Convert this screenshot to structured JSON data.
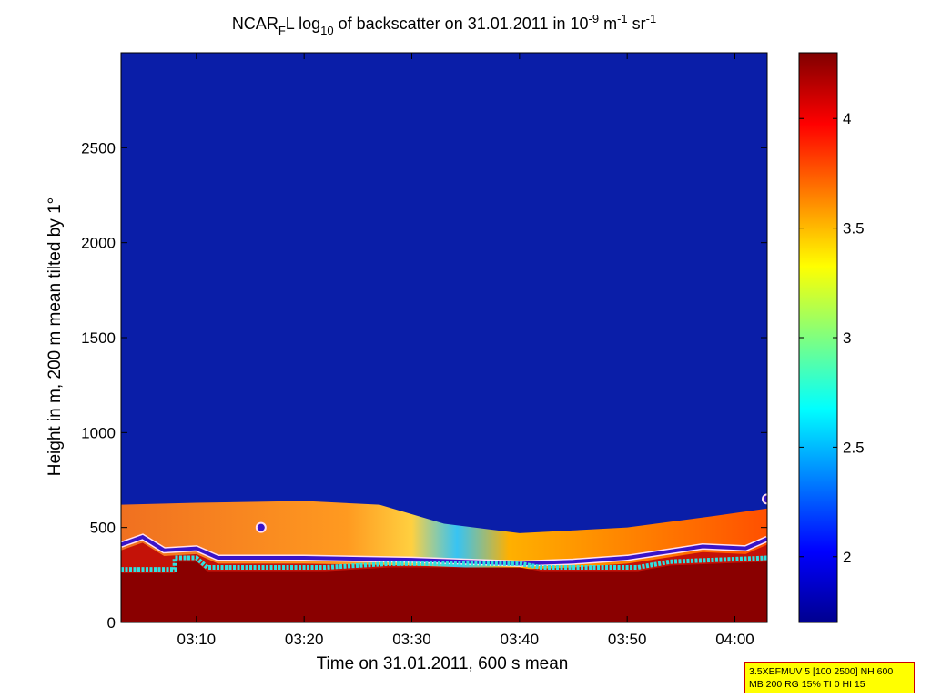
{
  "chart_data": {
    "type": "heatmap",
    "title": {
      "p1": "NCAR",
      "p2": "F",
      "p3": "L log",
      "p4": "10",
      "p5": " of backscatter on 31.01.2011 in 10",
      "p6": "-9",
      "p7": " m",
      "p8": "-1",
      "p9": " sr",
      "p10": "-1"
    },
    "xlabel": "Time on 31.01.2011, 600 s mean",
    "ylabel": "Height in m, 200 m mean tilted by 1°",
    "x_axis": {
      "range": [
        "03:03",
        "04:03"
      ],
      "ticks": [
        "03:10",
        "03:20",
        "03:30",
        "03:40",
        "03:50",
        "04:00"
      ]
    },
    "y_axis": {
      "range": [
        0,
        3000
      ],
      "ticks": [
        "0",
        "500",
        "1000",
        "1500",
        "2000",
        "2500"
      ]
    },
    "colorbar": {
      "range": [
        1.7,
        4.3
      ],
      "ticks": [
        "2",
        "2.5",
        "3",
        "3.5",
        "4"
      ],
      "colormap": "jet"
    },
    "layers": {
      "background_value": 1.75,
      "aerosol_layer_top_m": [
        {
          "time": "03:03",
          "height": 620
        },
        {
          "time": "03:10",
          "height": 630
        },
        {
          "time": "03:20",
          "height": 640
        },
        {
          "time": "03:27",
          "height": 620
        },
        {
          "time": "03:33",
          "height": 520
        },
        {
          "time": "03:40",
          "height": 470
        },
        {
          "time": "03:50",
          "height": 500
        },
        {
          "time": "03:58",
          "height": 560
        },
        {
          "time": "04:03",
          "height": 600
        }
      ],
      "purple_layer_height_m": [
        {
          "time": "03:03",
          "height": 410
        },
        {
          "time": "03:05",
          "height": 450
        },
        {
          "time": "03:07",
          "height": 380
        },
        {
          "time": "03:10",
          "height": 390
        },
        {
          "time": "03:12",
          "height": 340
        },
        {
          "time": "03:20",
          "height": 340
        },
        {
          "time": "03:30",
          "height": 330
        },
        {
          "time": "03:40",
          "height": 310
        },
        {
          "time": "03:45",
          "height": 320
        },
        {
          "time": "03:50",
          "height": 340
        },
        {
          "time": "03:57",
          "height": 400
        },
        {
          "time": "04:01",
          "height": 390
        },
        {
          "time": "04:03",
          "height": 440
        }
      ],
      "cyan_layer_height_m": [
        {
          "time": "03:03",
          "height": 280
        },
        {
          "time": "03:08",
          "height": 280
        },
        {
          "time": "03:08",
          "height": 340
        },
        {
          "time": "03:10",
          "height": 340
        },
        {
          "time": "03:11",
          "height": 290
        },
        {
          "time": "03:22",
          "height": 290
        },
        {
          "time": "03:28",
          "height": 310
        },
        {
          "time": "03:40",
          "height": 310
        },
        {
          "time": "03:42",
          "height": 290
        },
        {
          "time": "03:51",
          "height": 290
        },
        {
          "time": "03:54",
          "height": 320
        },
        {
          "time": "04:03",
          "height": 340
        }
      ],
      "extra_points": [
        {
          "time": "03:16",
          "height": 500
        },
        {
          "time": "04:03",
          "height": 650
        }
      ]
    }
  },
  "info_box": {
    "line1": "3.5XEFMUV 5 [100 2500] NH 600",
    "line2": "MB 200 RG 15% TI 0 HI 15"
  }
}
